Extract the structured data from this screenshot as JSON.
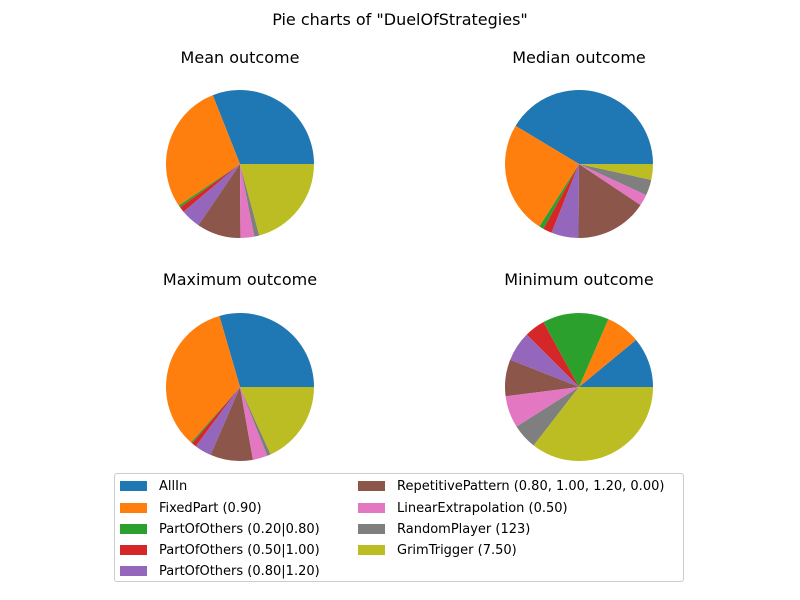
{
  "suptitle": "Pie charts of \"DuelOfStrategies\"",
  "colors": [
    "#1f77b4",
    "#ff7f0e",
    "#2ca02c",
    "#d62728",
    "#9467bd",
    "#8c564b",
    "#e377c2",
    "#7f7f7f",
    "#bcbd22"
  ],
  "legend": {
    "placement": "bottom-center",
    "columns": 2,
    "entries": [
      "AllIn",
      "FixedPart (0.90)",
      "PartOfOthers (0.20|0.80)",
      "PartOfOthers (0.50|1.00)",
      "PartOfOthers (0.80|1.20)",
      "RepetitivePattern (0.80, 1.00, 1.20, 0.00)",
      "LinearExtrapolation (0.50)",
      "RandomPlayer (123)",
      "GrimTrigger (7.50)"
    ]
  },
  "chart_data": [
    {
      "type": "pie",
      "title": "Mean outcome",
      "labels": [
        "AllIn",
        "FixedPart (0.90)",
        "PartOfOthers (0.20|0.80)",
        "PartOfOthers (0.50|1.00)",
        "PartOfOthers (0.80|1.20)",
        "RepetitivePattern (0.80, 1.00, 1.20, 0.00)",
        "LinearExtrapolation (0.50)",
        "RandomPlayer (123)",
        "GrimTrigger (7.50)"
      ],
      "values": [
        31.0,
        28.5,
        0.5,
        1.2,
        4.3,
        9.6,
        3.0,
        1.1,
        20.8
      ]
    },
    {
      "type": "pie",
      "title": "Median outcome",
      "labels": [
        "AllIn",
        "FixedPart (0.90)",
        "PartOfOthers (0.20|0.80)",
        "PartOfOthers (0.50|1.00)",
        "PartOfOthers (0.80|1.20)",
        "RepetitivePattern (0.80, 1.00, 1.20, 0.00)",
        "LinearExtrapolation (0.50)",
        "RandomPlayer (123)",
        "GrimTrigger (7.50)"
      ],
      "values": [
        42.0,
        25.0,
        1.0,
        2.0,
        6.0,
        16.0,
        2.5,
        3.5,
        3.5
      ]
    },
    {
      "type": "pie",
      "title": "Maximum outcome",
      "labels": [
        "AllIn",
        "FixedPart (0.90)",
        "PartOfOthers (0.20|0.80)",
        "PartOfOthers (0.50|1.00)",
        "PartOfOthers (0.80|1.20)",
        "RepetitivePattern (0.80, 1.00, 1.20, 0.00)",
        "LinearExtrapolation (0.50)",
        "RandomPlayer (123)",
        "GrimTrigger (7.50)"
      ],
      "values": [
        29.5,
        34.0,
        0.3,
        1.0,
        3.7,
        9.3,
        3.2,
        0.8,
        18.2
      ]
    },
    {
      "type": "pie",
      "title": "Minimum outcome",
      "labels": [
        "AllIn",
        "FixedPart (0.90)",
        "PartOfOthers (0.20|0.80)",
        "PartOfOthers (0.50|1.00)",
        "PartOfOthers (0.80|1.20)",
        "RepetitivePattern (0.80, 1.00, 1.20, 0.00)",
        "LinearExtrapolation (0.50)",
        "RandomPlayer (123)",
        "GrimTrigger (7.50)"
      ],
      "values": [
        11.0,
        7.5,
        14.5,
        4.5,
        6.5,
        8.0,
        7.0,
        5.5,
        35.5
      ]
    }
  ]
}
